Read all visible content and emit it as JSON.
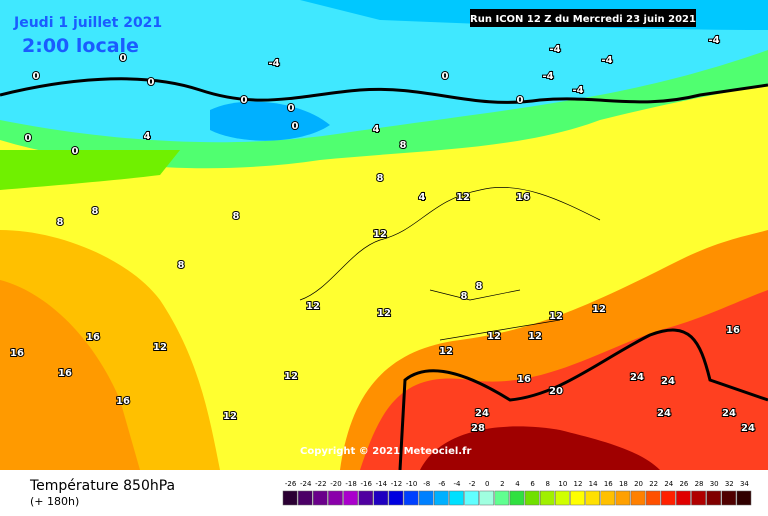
{
  "header": {
    "date": "Jeudi 1 juillet 2021",
    "time": "2:00 locale",
    "run": "Run ICON 12 Z du Mercredi 23 juin 2021"
  },
  "copyright": "Copyright © 2021 Meteociel.fr",
  "footer": {
    "title": "Température 850hPa",
    "lead": "(+ 180h)"
  },
  "legend": {
    "labels": [
      -26,
      -24,
      -22,
      -20,
      -18,
      -16,
      -14,
      -12,
      -10,
      -8,
      -6,
      -4,
      -2,
      0,
      2,
      4,
      6,
      8,
      10,
      12,
      14,
      16,
      18,
      20,
      22,
      24,
      26,
      28,
      30,
      32,
      34
    ],
    "colors": [
      "#2b0033",
      "#4b0066",
      "#6a008a",
      "#8a00aa",
      "#aa00cc",
      "#5000a0",
      "#2000c0",
      "#0000e0",
      "#0040ff",
      "#0080ff",
      "#00b0ff",
      "#00e0ff",
      "#60ffff",
      "#a0ffe0",
      "#60ff90",
      "#30e040",
      "#70e000",
      "#a0f000",
      "#d0ff00",
      "#ffff00",
      "#ffe000",
      "#ffc000",
      "#ffa000",
      "#ff8000",
      "#ff5000",
      "#ff2000",
      "#e00000",
      "#b00000",
      "#800000",
      "#500000",
      "#300000"
    ]
  },
  "contour_labels": [
    0,
    0,
    0,
    0,
    -4,
    0,
    0,
    0,
    0,
    -4,
    -4,
    -4,
    -4,
    0,
    -4,
    4,
    0,
    4,
    8,
    4,
    8,
    8,
    8,
    12,
    16,
    12,
    8,
    8,
    12,
    8,
    8,
    16,
    16,
    16,
    12,
    12,
    12,
    12,
    12,
    12,
    12,
    12,
    16,
    16,
    20,
    24,
    24,
    24,
    28,
    24,
    24,
    24,
    16,
    12
  ]
}
